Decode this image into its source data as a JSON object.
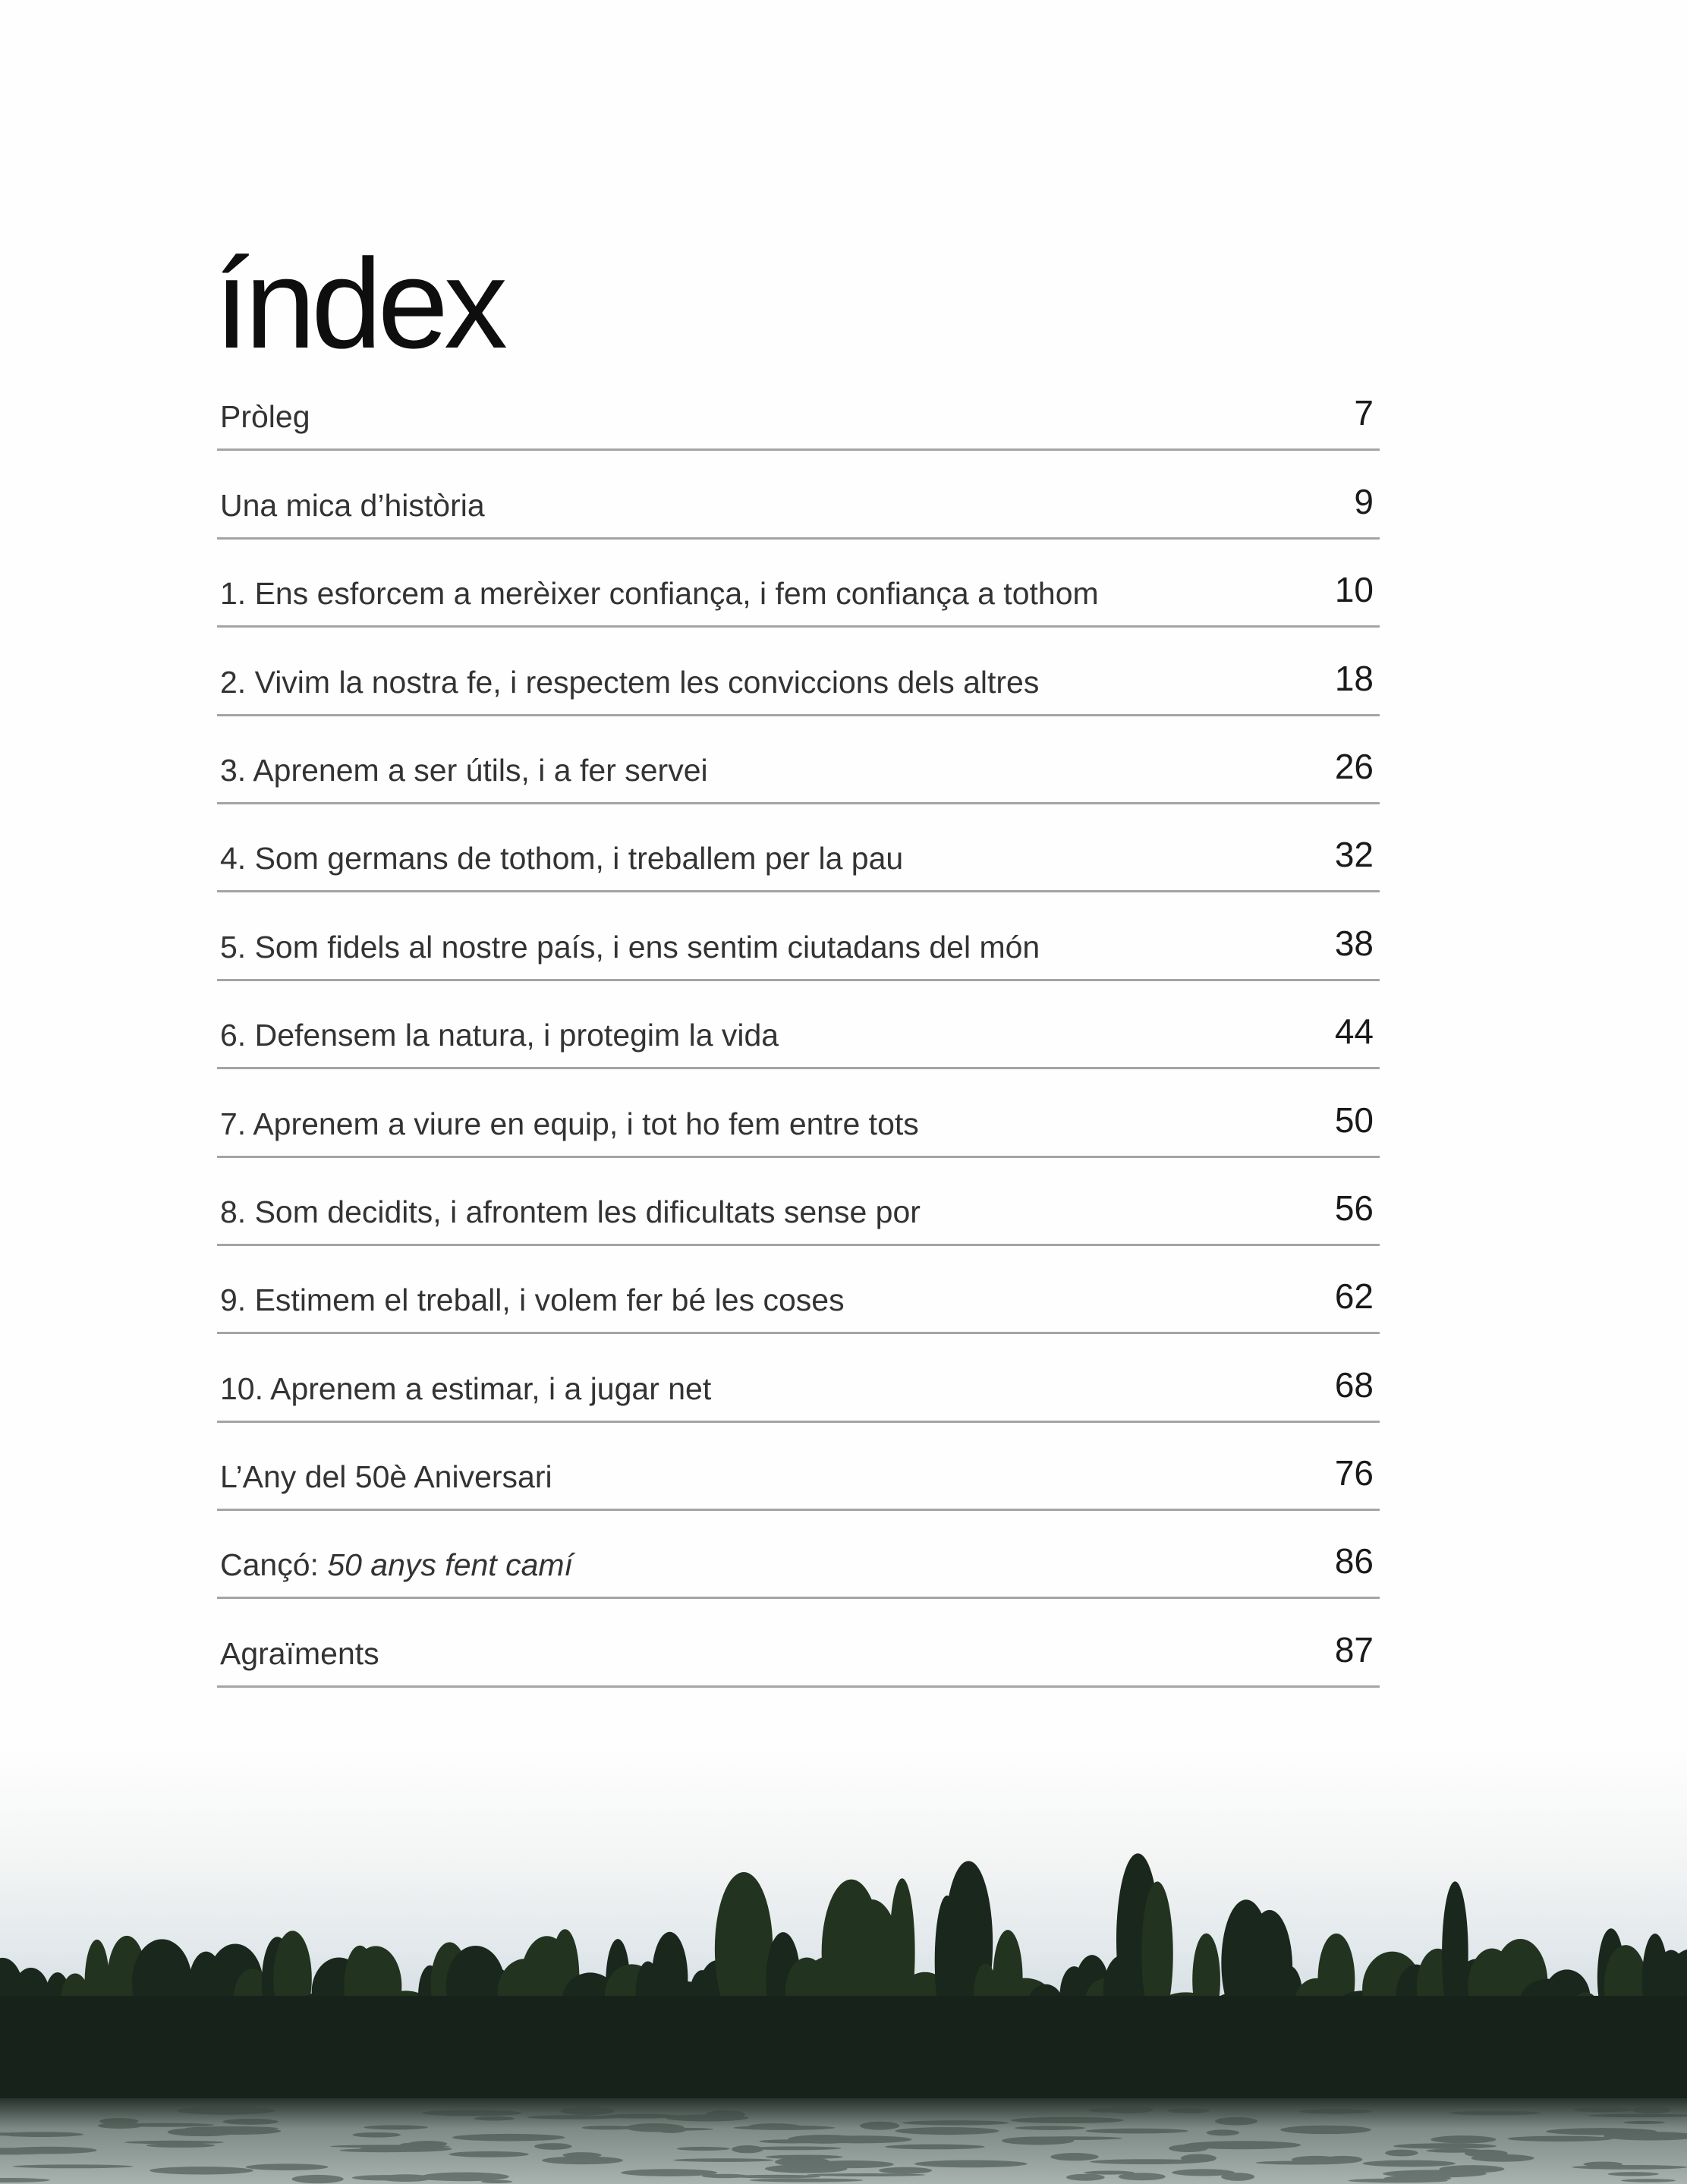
{
  "title": "índex",
  "entries": [
    {
      "label": "Pròleg",
      "page": "7"
    },
    {
      "label": "Una mica d’història",
      "page": "9"
    },
    {
      "label": "1. Ens esforcem a merèixer confiança, i fem confiança a tothom",
      "page": "10"
    },
    {
      "label": "2. Vivim la nostra fe, i respectem les conviccions dels altres",
      "page": "18"
    },
    {
      "label": "3. Aprenem a ser útils, i a fer servei",
      "page": "26"
    },
    {
      "label": "4. Som germans de tothom, i treballem per la pau",
      "page": "32"
    },
    {
      "label": "5. Som fidels al nostre país, i ens sentim ciutadans del món",
      "page": "38"
    },
    {
      "label": "6. Defensem la natura, i protegim la vida",
      "page": "44"
    },
    {
      "label": "7. Aprenem a viure en equip, i tot ho fem entre tots",
      "page": "50"
    },
    {
      "label": "8. Som decidits, i afrontem les dificultats sense por",
      "page": "56"
    },
    {
      "label": "9. Estimem el treball, i volem fer bé les coses",
      "page": "62"
    },
    {
      "label": "10. Aprenem a estimar, i a jugar net",
      "page": "68"
    },
    {
      "label": "L’Any del 50è Aniversari",
      "page": "76"
    },
    {
      "label": "Cançó: ",
      "label_italic": "50 anys fent camí",
      "page": "86"
    },
    {
      "label": "Agraïments",
      "page": "87"
    }
  ],
  "photo": {
    "subject": "river-treeline-photo",
    "colors": {
      "sky": "#dfe6ea",
      "trees": "#1c2a1f",
      "water": "#7d8a86"
    }
  }
}
